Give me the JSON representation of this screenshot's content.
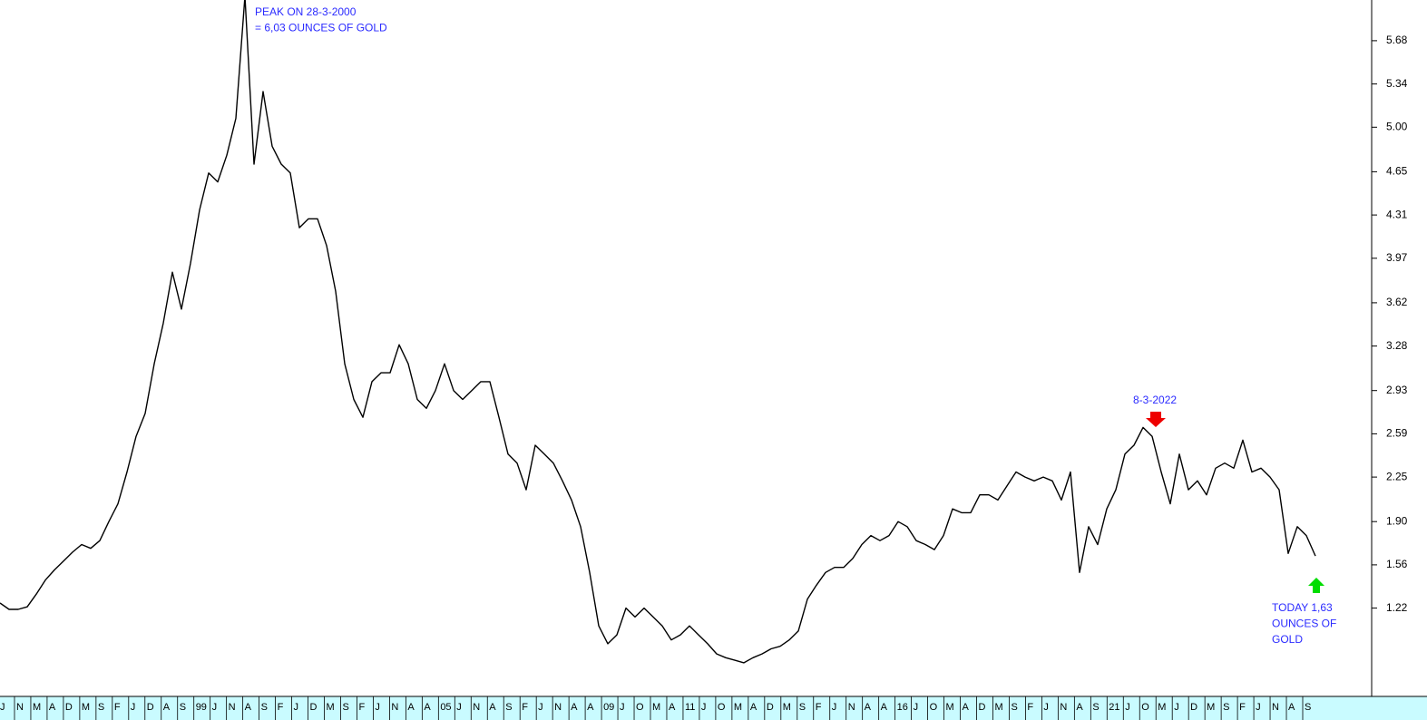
{
  "chart_data": {
    "type": "line",
    "color": "#000000",
    "values": [
      1.26,
      1.21,
      1.21,
      1.23,
      1.33,
      1.44,
      1.52,
      1.59,
      1.66,
      1.72,
      1.69,
      1.75,
      1.9,
      2.04,
      2.29,
      2.57,
      2.75,
      3.14,
      3.46,
      3.86,
      3.57,
      3.93,
      4.35,
      4.64,
      4.57,
      4.78,
      5.07,
      6.03,
      4.71,
      5.28,
      4.85,
      4.71,
      4.64,
      4.21,
      4.28,
      4.28,
      4.07,
      3.71,
      3.14,
      2.86,
      2.72,
      3.0,
      3.07,
      3.07,
      3.29,
      3.14,
      2.86,
      2.79,
      2.93,
      3.14,
      2.93,
      2.86,
      2.93,
      3.0,
      3.0,
      2.72,
      2.43,
      2.36,
      2.15,
      2.5,
      2.43,
      2.36,
      2.22,
      2.07,
      1.86,
      1.5,
      1.08,
      0.94,
      1.01,
      1.22,
      1.15,
      1.22,
      1.15,
      1.08,
      0.97,
      1.01,
      1.08,
      1.01,
      0.94,
      0.86,
      0.83,
      0.81,
      0.79,
      0.83,
      0.86,
      0.9,
      0.92,
      0.97,
      1.04,
      1.29,
      1.4,
      1.5,
      1.54,
      1.54,
      1.61,
      1.72,
      1.79,
      1.75,
      1.79,
      1.9,
      1.86,
      1.75,
      1.72,
      1.68,
      1.79,
      2.0,
      1.97,
      1.97,
      2.11,
      2.11,
      2.07,
      2.18,
      2.29,
      2.25,
      2.22,
      2.25,
      2.22,
      2.07,
      2.29,
      1.5,
      1.86,
      1.72,
      2.0,
      2.15,
      2.43,
      2.5,
      2.64,
      2.57,
      2.29,
      2.04,
      2.43,
      2.15,
      2.22,
      2.11,
      2.32,
      2.36,
      2.32,
      2.54,
      2.29,
      2.32,
      2.25,
      2.15,
      1.65,
      1.86,
      1.79,
      1.63
    ],
    "ylim": [
      0.54,
      6.0
    ],
    "yticks": [
      5.68,
      5.34,
      {
        "value": 5,
        "label": "5.00"
      },
      4.65,
      4.31,
      3.97,
      3.62,
      3.28,
      2.93,
      2.59,
      2.25,
      {
        "value": 1.9,
        "label": "1.90"
      },
      1.56,
      1.22
    ],
    "x_axis_labels": [
      "J",
      "N",
      "M",
      "A",
      "D",
      "M",
      "S",
      "F",
      "J",
      "D",
      "A",
      "S",
      "99",
      "J",
      "N",
      "A",
      "S",
      "F",
      "J",
      "D",
      "M",
      "S",
      "F",
      "J",
      "N",
      "A",
      "A",
      "05",
      "J",
      "N",
      "A",
      "S",
      "F",
      "J",
      "N",
      "A",
      "A",
      "09",
      "J",
      "O",
      "M",
      "A",
      "11",
      "J",
      "O",
      "M",
      "A",
      "D",
      "M",
      "S",
      "F",
      "J",
      "N",
      "A",
      "A",
      "16",
      "J",
      "O",
      "M",
      "A",
      "D",
      "M",
      "S",
      "F",
      "J",
      "N",
      "A",
      "S",
      "21",
      "J",
      "O",
      "M",
      "J",
      "D",
      "M",
      "S",
      "F",
      "J",
      "N",
      "A",
      "S"
    ],
    "annotations": {
      "peak": [
        "PEAK ON 28-3-2000",
        "= 6,03 OUNCES OF GOLD"
      ],
      "high": [
        "8-3-2022"
      ],
      "today": [
        "TODAY 1,63",
        "OUNCES OF",
        "GOLD"
      ]
    }
  }
}
